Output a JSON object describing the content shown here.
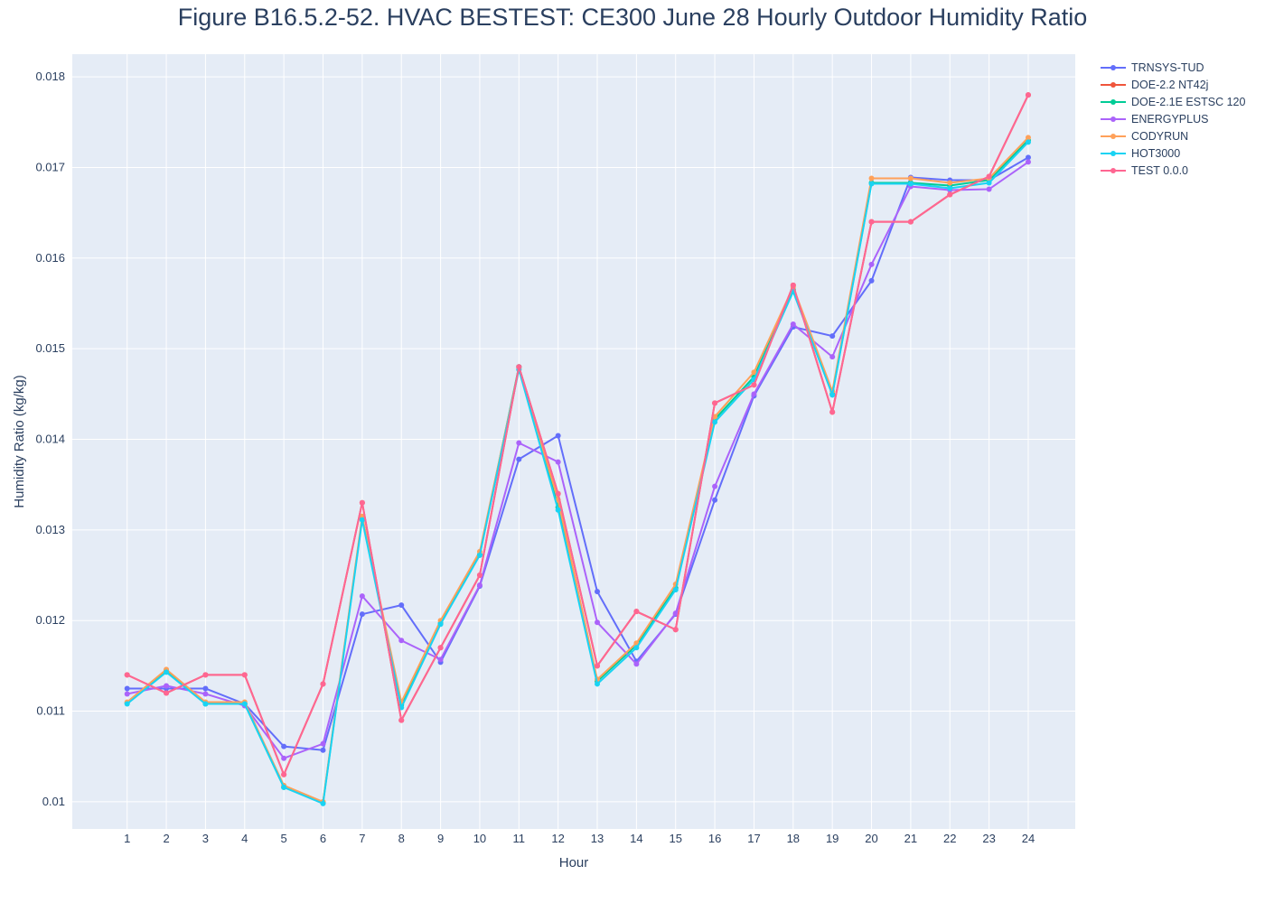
{
  "chart_data": {
    "type": "line",
    "title": "Figure B16.5.2-52. HVAC BESTEST: CE300 June 28 Hourly Outdoor Humidity Ratio",
    "xlabel": "Hour",
    "ylabel": "Humidity Ratio (kg/kg)",
    "xlim": [
      -0.4,
      25.2
    ],
    "ylim": [
      0.0097,
      0.01825
    ],
    "x": [
      1,
      2,
      3,
      4,
      5,
      6,
      7,
      8,
      9,
      10,
      11,
      12,
      13,
      14,
      15,
      16,
      17,
      18,
      19,
      20,
      21,
      22,
      23,
      24
    ],
    "x_ticks": [
      1,
      2,
      3,
      4,
      5,
      6,
      7,
      8,
      9,
      10,
      11,
      12,
      13,
      14,
      15,
      16,
      17,
      18,
      19,
      20,
      21,
      22,
      23,
      24
    ],
    "y_ticks": [
      0.01,
      0.011,
      0.012,
      0.013,
      0.014,
      0.015,
      0.016,
      0.017,
      0.018
    ],
    "y_tick_labels": [
      "0.01",
      "0.011",
      "0.012",
      "0.013",
      "0.014",
      "0.015",
      "0.016",
      "0.017",
      "0.018"
    ],
    "grid": true,
    "legend_position": "top-right",
    "plot_bg": "#e5ecf6",
    "series": [
      {
        "name": "TRNSYS-TUD",
        "color": "#636efa",
        "values": [
          0.01125,
          0.01125,
          0.01125,
          0.01108,
          0.01061,
          0.01057,
          0.01207,
          0.01217,
          0.01154,
          0.01238,
          0.01378,
          0.01404,
          0.01232,
          0.01155,
          0.01207,
          0.01333,
          0.01448,
          0.01524,
          0.01514,
          0.01575,
          0.01689,
          0.01686,
          0.01686,
          0.01711
        ]
      },
      {
        "name": "DOE-2.2 NT42j",
        "color": "#ef553b",
        "values": [
          0.0114,
          0.0112,
          0.0114,
          0.0114,
          0.0103,
          0.0113,
          0.0133,
          0.0109,
          0.0117,
          0.0125,
          0.0148,
          0.0134,
          0.0115,
          0.0121,
          0.0119,
          0.0144,
          0.0146,
          0.0157,
          0.0143,
          0.0164,
          0.0164,
          0.0167,
          0.0169,
          0.0178
        ]
      },
      {
        "name": "DOE-2.1E ESTSC 120",
        "color": "#00cc96",
        "values": [
          0.01109,
          0.01145,
          0.01108,
          0.01108,
          0.01016,
          0.00999,
          0.01313,
          0.01107,
          0.01197,
          0.01273,
          0.0148,
          0.01325,
          0.01133,
          0.01173,
          0.01236,
          0.01422,
          0.01469,
          0.01565,
          0.0145,
          0.01683,
          0.01683,
          0.0168,
          0.01686,
          0.0173
        ]
      },
      {
        "name": "ENERGYPLUS",
        "color": "#ab63fa",
        "values": [
          0.01119,
          0.01128,
          0.01119,
          0.01106,
          0.01048,
          0.01064,
          0.01227,
          0.01178,
          0.01157,
          0.01239,
          0.01396,
          0.01375,
          0.01198,
          0.01152,
          0.01208,
          0.01348,
          0.0145,
          0.01527,
          0.01491,
          0.01593,
          0.01679,
          0.01675,
          0.01676,
          0.01706
        ]
      },
      {
        "name": "CODYRUN",
        "color": "#ffa15a",
        "values": [
          0.0111,
          0.01146,
          0.0111,
          0.0111,
          0.01018,
          0.01,
          0.01315,
          0.0111,
          0.012,
          0.01276,
          0.01478,
          0.01333,
          0.01135,
          0.01175,
          0.0124,
          0.01425,
          0.01474,
          0.01568,
          0.01453,
          0.01688,
          0.01688,
          0.01683,
          0.01688,
          0.01733
        ]
      },
      {
        "name": "HOT3000",
        "color": "#19d3f3",
        "values": [
          0.01108,
          0.01143,
          0.01108,
          0.01108,
          0.01016,
          0.00998,
          0.01311,
          0.01104,
          0.01196,
          0.01272,
          0.01477,
          0.01322,
          0.0113,
          0.0117,
          0.01234,
          0.01419,
          0.01466,
          0.01563,
          0.01449,
          0.01682,
          0.01682,
          0.01677,
          0.01683,
          0.01728
        ]
      },
      {
        "name": "TEST 0.0.0",
        "color": "#ff6692",
        "values": [
          0.0114,
          0.0112,
          0.0114,
          0.0114,
          0.0103,
          0.0113,
          0.0133,
          0.0109,
          0.0117,
          0.0125,
          0.0148,
          0.0134,
          0.0115,
          0.0121,
          0.0119,
          0.0144,
          0.0146,
          0.0157,
          0.0143,
          0.0164,
          0.0164,
          0.0167,
          0.0169,
          0.0178
        ]
      }
    ]
  }
}
